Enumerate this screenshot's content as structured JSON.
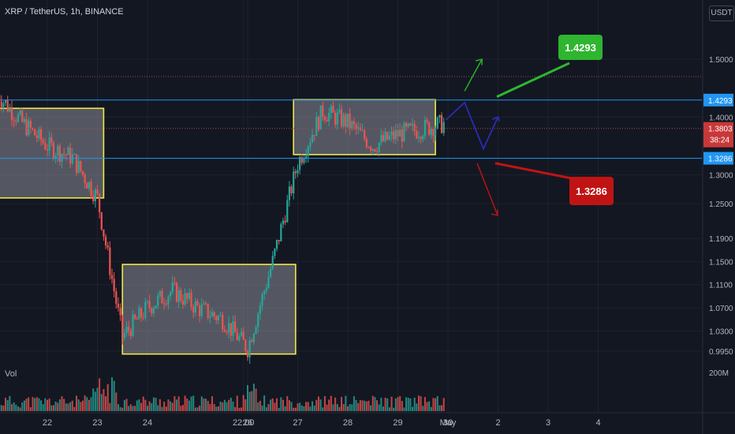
{
  "header": {
    "title": "XRP / TetherUS, 1h, BINANCE",
    "currency": "USDT"
  },
  "volume_pane": {
    "label": "Vol",
    "axis_label": "200M"
  },
  "badges": {
    "resistance": "1.4293",
    "current_price": "1.3803",
    "countdown": "38:24",
    "support": "1.3286"
  },
  "callouts": {
    "up": "1.4293",
    "down": "1.3286"
  },
  "colors": {
    "background": "#131722",
    "up_candle": "#26a69a",
    "down_candle": "#ef5350",
    "level_line": "#2196f3",
    "box_border": "#f2e84a",
    "box_fill": "#9598a1",
    "up_label": "#2fb52f",
    "down_label": "#c01414",
    "path": "#2b2bb3"
  },
  "chart_data": {
    "type": "line",
    "title": "XRP / TetherUS, 1h, BINANCE",
    "y_ticks": [
      "1.5000",
      "1.4000",
      "1.3000",
      "1.2500",
      "1.1900",
      "1.1500",
      "1.1100",
      "1.0700",
      "1.0300",
      "0.9950"
    ],
    "x_ticks": [
      "22",
      "23",
      "24",
      "22:00",
      "26",
      "27",
      "28",
      "29",
      "30",
      "May",
      "2",
      "3",
      "4"
    ],
    "ylim": [
      0.98,
      1.55
    ],
    "x": [
      "21 00:00",
      "21 12:00",
      "22 00:00",
      "22 12:00",
      "23 00:00",
      "23 12:00",
      "24 00:00",
      "24 12:00",
      "25 00:00",
      "25 12:00",
      "26 00:00",
      "26 12:00",
      "27 00:00",
      "27 12:00",
      "28 00:00",
      "28 12:00",
      "29 00:00",
      "29 12:00",
      "30 00:00"
    ],
    "series": [
      {
        "values": [
          1.44,
          1.39,
          1.35,
          1.33,
          1.26,
          1.02,
          1.07,
          1.1,
          1.07,
          1.05,
          1.0,
          1.15,
          1.32,
          1.41,
          1.39,
          1.35,
          1.37,
          1.38,
          1.39
        ]
      }
    ],
    "levels": [
      {
        "label": "1.4293",
        "value": 1.4293,
        "style": "solid"
      },
      {
        "label": "1.3286",
        "value": 1.3286,
        "style": "solid"
      },
      {
        "label": "1.3803",
        "value": 1.3803,
        "style": "dotted"
      },
      {
        "value": 1.47,
        "style": "dotted"
      }
    ],
    "boxes": [
      {
        "x": [
          "21 00:00",
          "23 03:00"
        ],
        "y": [
          1.26,
          1.415
        ]
      },
      {
        "x": [
          "23 12:00",
          "26 23:00"
        ],
        "y": [
          0.99,
          1.145
        ]
      },
      {
        "x": [
          "26 22:00",
          "29 18:00"
        ],
        "y": [
          1.335,
          1.43
        ]
      }
    ],
    "volume_axis": "200M",
    "grid": true
  }
}
